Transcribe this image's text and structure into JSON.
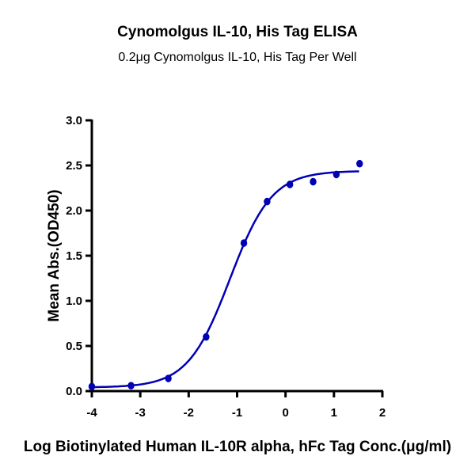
{
  "chart_data": {
    "type": "scatter",
    "title": "Cynomolgus IL-10, His Tag ELISA",
    "subtitle": "0.2μg Cynomolgus IL-10, His Tag Per Well",
    "xlabel": "Log Biotinylated Human IL-10R alpha, hFc Tag Conc.(μg/ml)",
    "ylabel": "Mean Abs.(OD450)",
    "xlim": [
      -4,
      2
    ],
    "ylim": [
      0,
      3.0
    ],
    "xticks": [
      "-4",
      "-3",
      "-2",
      "-1",
      "0",
      "1",
      "2"
    ],
    "yticks": [
      "0.0",
      "0.5",
      "1.0",
      "1.5",
      "2.0",
      "2.5",
      "3.0"
    ],
    "grid": false,
    "color": "#0000b4",
    "x": [
      -4.0,
      -3.19,
      -2.42,
      -1.64,
      -0.86,
      -0.38,
      0.09,
      0.57,
      1.05,
      1.53
    ],
    "y": [
      0.05,
      0.06,
      0.14,
      0.6,
      1.64,
      2.1,
      2.29,
      2.32,
      2.4,
      2.52
    ],
    "fit": {
      "model": "4PL",
      "bottom": 0.04,
      "top": 2.44,
      "log_ec50": -1.15,
      "hill": 1.0
    }
  }
}
